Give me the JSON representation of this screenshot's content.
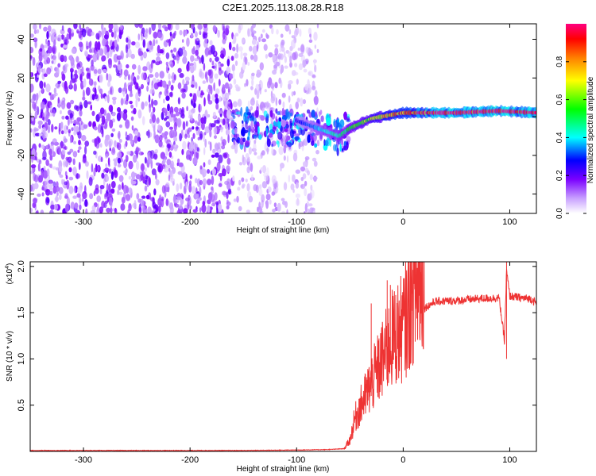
{
  "figure_title": "C2E1.2025.113.08.28.R18",
  "chart_data": [
    {
      "type": "heatmap",
      "title": "C2E1.2025.113.08.28.R18",
      "xlabel": "Height of straight line (km)",
      "ylabel": "Frequency (Hz)",
      "xlim": [
        -350,
        125
      ],
      "ylim": [
        -50,
        48
      ],
      "x_ticks": [
        -300,
        -200,
        -100,
        0,
        100
      ],
      "y_ticks": [
        -40,
        -20,
        0,
        20,
        40
      ],
      "colorbar": {
        "label": "Normalized spectral amplitude",
        "range": [
          0.0,
          1.0
        ],
        "ticks": [
          0.0,
          0.2,
          0.4,
          0.6,
          0.8
        ],
        "tick_labels": [
          "0.0",
          "0.2",
          "0.4",
          "0.6",
          "0.8"
        ],
        "colors": [
          "#ffffff",
          "#c8a0ff",
          "#7a00ff",
          "#0000ff",
          "#00ffff",
          "#00ff00",
          "#ffff00",
          "#ff8000",
          "#ff0000",
          "#ff0080"
        ]
      },
      "regions": [
        {
          "x_range": [
            -350,
            -160
          ],
          "freq_range": [
            -50,
            48
          ],
          "amplitude": 0.15,
          "pattern": "broadband noise"
        },
        {
          "x_range": [
            -160,
            -80
          ],
          "freq_range": [
            -50,
            48
          ],
          "amplitude": 0.08,
          "pattern": "sparse noise"
        },
        {
          "x_range": [
            -160,
            -50
          ],
          "freq_range": [
            -8,
            10
          ],
          "amplitude": 0.3,
          "pattern": "emerging signal"
        },
        {
          "x_range": [
            -50,
            125
          ],
          "freq_range": [
            -10,
            6
          ],
          "amplitude": 0.9,
          "pattern": "narrow tone"
        }
      ],
      "signal_track": [
        {
          "x": -80,
          "y": -6
        },
        {
          "x": -60,
          "y": -10
        },
        {
          "x": -50,
          "y": -6
        },
        {
          "x": -30,
          "y": -1
        },
        {
          "x": 0,
          "y": 2
        },
        {
          "x": 50,
          "y": 2
        },
        {
          "x": 90,
          "y": 3
        },
        {
          "x": 125,
          "y": 2
        }
      ]
    },
    {
      "type": "line",
      "xlabel": "Height of straight line (km)",
      "ylabel": "SNR (10 * v/v)",
      "y_multiplier": "(x10",
      "y_multiplier_exp": "4",
      "y_multiplier_close": ")",
      "xlim": [
        -350,
        125
      ],
      "ylim": [
        0,
        2.05
      ],
      "x_ticks": [
        -300,
        -200,
        -100,
        0,
        100
      ],
      "y_ticks": [
        0.5,
        1.0,
        1.5,
        2.0
      ],
      "y_tick_labels": [
        "0.5",
        "1.0",
        "1.5",
        "2.0"
      ],
      "color": "#ee3333",
      "x": [
        -350,
        -300,
        -250,
        -200,
        -150,
        -100,
        -70,
        -55,
        -50,
        -45,
        -40,
        -35,
        -30,
        -25,
        -20,
        -15,
        -10,
        -5,
        0,
        10,
        20,
        30,
        50,
        70,
        90,
        95,
        97,
        100,
        110,
        120,
        125
      ],
      "values": [
        0.01,
        0.01,
        0.01,
        0.01,
        0.01,
        0.015,
        0.02,
        0.03,
        0.1,
        0.3,
        0.4,
        0.5,
        0.6,
        0.7,
        0.8,
        0.9,
        1.0,
        1.05,
        1.1,
        1.4,
        1.55,
        1.62,
        1.63,
        1.65,
        1.66,
        1.2,
        1.95,
        1.68,
        1.66,
        1.65,
        1.6
      ],
      "spikes": [
        {
          "x": -30,
          "y": 1.6
        },
        {
          "x": -15,
          "y": 1.85
        },
        {
          "x": -12,
          "y": 1.8
        },
        {
          "x": 97,
          "y": 2.05
        },
        {
          "x": 97,
          "y": 1.0
        }
      ]
    }
  ]
}
